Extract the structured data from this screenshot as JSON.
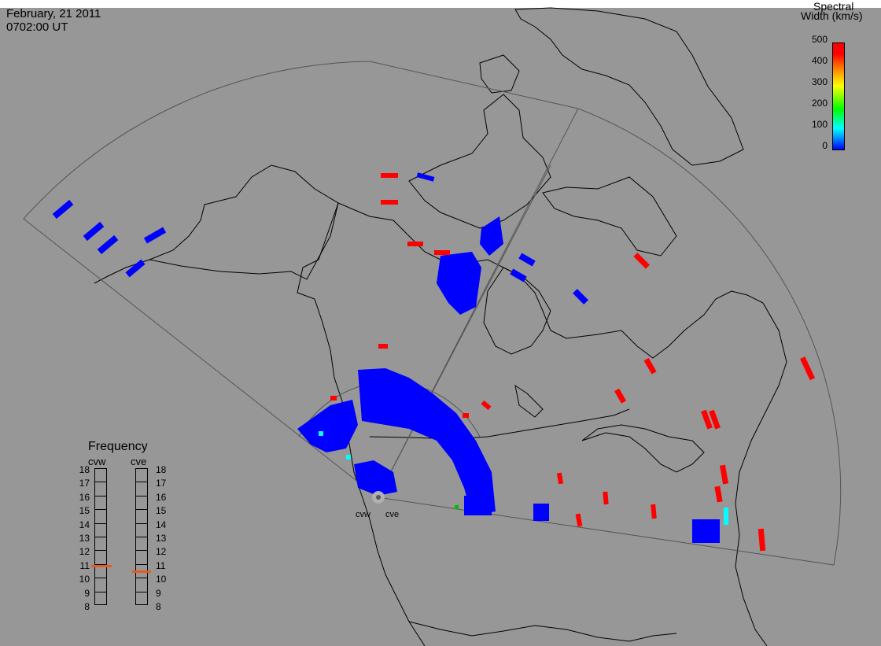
{
  "header": {
    "date": "February, 21 2011",
    "time": "0702:00 UT"
  },
  "colorbar": {
    "title_line1": "Spectral",
    "title_line2": "Width (km/s)",
    "ticks": [
      "500",
      "400",
      "300",
      "200",
      "100",
      "0"
    ],
    "colors": [
      "#0000ff",
      "#00ffff",
      "#00ff00",
      "#ffff00",
      "#ff8000",
      "#ff0000"
    ]
  },
  "frequency_panel": {
    "title": "Frequency",
    "radars": [
      "cvw",
      "cve"
    ],
    "scale": [
      "18",
      "17",
      "16",
      "15",
      "14",
      "13",
      "12",
      "11",
      "10",
      "9",
      "8"
    ],
    "cvw_value_mhz": 10.9,
    "cve_value_mhz": 10.5
  },
  "map": {
    "radar_sites": [
      "cvw",
      "cve"
    ],
    "background": "#979797",
    "land_outline": "#000000",
    "fov_outline": "#555555"
  }
}
